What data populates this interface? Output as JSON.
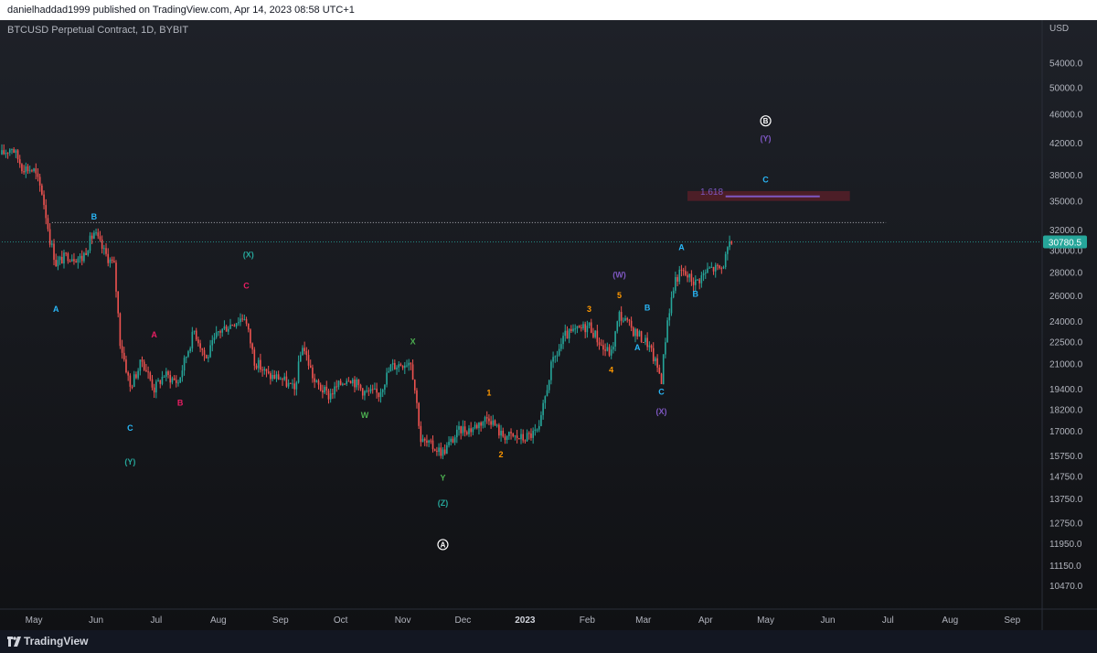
{
  "header": {
    "published": "danielhaddad1999 published on TradingView.com, Apr 14, 2023 08:58 UTC+1"
  },
  "chart_info": {
    "symbol": "BTCUSD Perpetual Contract, 1D, BYBIT"
  },
  "footer": {
    "brand": "TradingView",
    "logo_icon": "tradingview-logo-icon"
  },
  "colors": {
    "up": "#26a69a",
    "down": "#ef5350",
    "bg_top": "#1e2128",
    "bg_bottom": "#101114",
    "axis_text": "#b2b5be",
    "grid": "#2a2e39",
    "price_badge": "#26a69a",
    "fib_box": "#5d1f2a",
    "fib_line": "#7e57c2"
  },
  "chart_data": {
    "type": "candlestick",
    "title": "BTCUSD Perpetual Contract, 1D, BYBIT",
    "yaxis": {
      "unit": "USD",
      "scale": "log",
      "range": [
        10000,
        60000
      ],
      "ticks": [
        "54000.0",
        "50000.0",
        "46000.0",
        "42000.0",
        "38000.0",
        "35000.0",
        "32000.0",
        "30000.0",
        "28000.0",
        "26000.0",
        "24000.0",
        "22500.0",
        "21000.0",
        "19400.0",
        "18200.0",
        "17000.0",
        "15750.0",
        "14750.0",
        "13750.0",
        "12750.0",
        "11950.0",
        "11150.0",
        "10470.0"
      ]
    },
    "xaxis": {
      "range": [
        "2022-04-15",
        "2023-09-15"
      ],
      "ticks": [
        {
          "label": "May",
          "date": "2022-05-01"
        },
        {
          "label": "Jun",
          "date": "2022-06-01"
        },
        {
          "label": "Jul",
          "date": "2022-07-01"
        },
        {
          "label": "Aug",
          "date": "2022-08-01"
        },
        {
          "label": "Sep",
          "date": "2022-09-01"
        },
        {
          "label": "Oct",
          "date": "2022-10-01"
        },
        {
          "label": "Nov",
          "date": "2022-11-01"
        },
        {
          "label": "Dec",
          "date": "2022-12-01"
        },
        {
          "label": "2023",
          "date": "2023-01-01",
          "bold": true
        },
        {
          "label": "Feb",
          "date": "2023-02-01"
        },
        {
          "label": "Mar",
          "date": "2023-03-01"
        },
        {
          "label": "Apr",
          "date": "2023-04-01"
        },
        {
          "label": "May",
          "date": "2023-05-01"
        },
        {
          "label": "Jun",
          "date": "2023-06-01"
        },
        {
          "label": "Jul",
          "date": "2023-07-01"
        },
        {
          "label": "Aug",
          "date": "2023-08-01"
        },
        {
          "label": "Sep",
          "date": "2023-09-01"
        }
      ]
    },
    "last_price": {
      "label": "30780.5",
      "value": 30780.5
    },
    "price_path": [
      [
        "2022-04-15",
        40500
      ],
      [
        "2022-04-20",
        41500
      ],
      [
        "2022-04-25",
        39000
      ],
      [
        "2022-05-01",
        38500
      ],
      [
        "2022-05-05",
        36000
      ],
      [
        "2022-05-09",
        31000
      ],
      [
        "2022-05-12",
        28800
      ],
      [
        "2022-05-18",
        29500
      ],
      [
        "2022-05-25",
        29200
      ],
      [
        "2022-05-31",
        31700
      ],
      [
        "2022-06-05",
        29800
      ],
      [
        "2022-06-10",
        28500
      ],
      [
        "2022-06-13",
        22500
      ],
      [
        "2022-06-18",
        19500
      ],
      [
        "2022-06-24",
        21200
      ],
      [
        "2022-06-30",
        19400
      ],
      [
        "2022-07-05",
        20300
      ],
      [
        "2022-07-12",
        19800
      ],
      [
        "2022-07-20",
        23300
      ],
      [
        "2022-07-26",
        21300
      ],
      [
        "2022-08-01",
        23200
      ],
      [
        "2022-08-14",
        24400
      ],
      [
        "2022-08-19",
        21200
      ],
      [
        "2022-08-26",
        20200
      ],
      [
        "2022-09-01",
        20100
      ],
      [
        "2022-09-08",
        19300
      ],
      [
        "2022-09-12",
        22300
      ],
      [
        "2022-09-18",
        19800
      ],
      [
        "2022-09-25",
        19000
      ],
      [
        "2022-10-05",
        20200
      ],
      [
        "2022-10-13",
        19200
      ],
      [
        "2022-10-20",
        19100
      ],
      [
        "2022-10-26",
        20800
      ],
      [
        "2022-11-05",
        21200
      ],
      [
        "2022-11-08",
        18500
      ],
      [
        "2022-11-10",
        16500
      ],
      [
        "2022-11-21",
        15900
      ],
      [
        "2022-11-30",
        17100
      ],
      [
        "2022-12-05",
        17100
      ],
      [
        "2022-12-14",
        17800
      ],
      [
        "2022-12-20",
        16800
      ],
      [
        "2022-12-31",
        16600
      ],
      [
        "2023-01-08",
        17000
      ],
      [
        "2023-01-14",
        20800
      ],
      [
        "2023-01-21",
        22900
      ],
      [
        "2023-02-02",
        23700
      ],
      [
        "2023-02-09",
        22000
      ],
      [
        "2023-02-13",
        21700
      ],
      [
        "2023-02-17",
        24500
      ],
      [
        "2023-02-24",
        23300
      ],
      [
        "2023-03-03",
        22400
      ],
      [
        "2023-03-09",
        20400
      ],
      [
        "2023-03-10",
        20000
      ],
      [
        "2023-03-13",
        24100
      ],
      [
        "2023-03-17",
        27400
      ],
      [
        "2023-03-20",
        28000
      ],
      [
        "2023-03-27",
        27100
      ],
      [
        "2023-04-03",
        28300
      ],
      [
        "2023-04-09",
        28300
      ],
      [
        "2023-04-14",
        30800
      ]
    ],
    "annotations": [
      {
        "text": "B",
        "date": "2022-05-31",
        "price": 33000,
        "color": "#29b6f6"
      },
      {
        "text": "A",
        "date": "2022-05-12",
        "price": 24700,
        "color": "#29b6f6"
      },
      {
        "text": "A",
        "date": "2022-06-30",
        "price": 22800,
        "color": "#e91e63"
      },
      {
        "text": "B",
        "date": "2022-07-13",
        "price": 18400,
        "color": "#e91e63"
      },
      {
        "text": "C",
        "date": "2022-08-15",
        "price": 26600,
        "color": "#e91e63"
      },
      {
        "text": "C",
        "date": "2022-06-18",
        "price": 17000,
        "color": "#29b6f6"
      },
      {
        "text": "(Y)",
        "date": "2022-06-18",
        "price": 15300,
        "color": "#26a69a"
      },
      {
        "text": "(X)",
        "date": "2022-08-16",
        "price": 29300,
        "color": "#26a69a"
      },
      {
        "text": "W",
        "date": "2022-10-13",
        "price": 17700,
        "color": "#4caf50"
      },
      {
        "text": "X",
        "date": "2022-11-06",
        "price": 22300,
        "color": "#4caf50"
      },
      {
        "text": "Y",
        "date": "2022-11-21",
        "price": 14550,
        "color": "#4caf50"
      },
      {
        "text": "(Z)",
        "date": "2022-11-21",
        "price": 13450,
        "color": "#26a69a"
      },
      {
        "text": "1",
        "date": "2022-12-14",
        "price": 19000,
        "color": "#ff9800"
      },
      {
        "text": "2",
        "date": "2022-12-20",
        "price": 15650,
        "color": "#ff9800"
      },
      {
        "text": "3",
        "date": "2023-02-02",
        "price": 24700,
        "color": "#ff9800"
      },
      {
        "text": "4",
        "date": "2023-02-13",
        "price": 20400,
        "color": "#ff9800"
      },
      {
        "text": "5",
        "date": "2023-02-17",
        "price": 25800,
        "color": "#ff9800"
      },
      {
        "text": "(W)",
        "date": "2023-02-17",
        "price": 27500,
        "color": "#7e57c2"
      },
      {
        "text": "A",
        "date": "2023-02-26",
        "price": 21900,
        "color": "#29b6f6"
      },
      {
        "text": "B",
        "date": "2023-03-03",
        "price": 24800,
        "color": "#29b6f6"
      },
      {
        "text": "C",
        "date": "2023-03-10",
        "price": 19050,
        "color": "#29b6f6"
      },
      {
        "text": "(X)",
        "date": "2023-03-10",
        "price": 17900,
        "color": "#7e57c2"
      },
      {
        "text": "A",
        "date": "2023-03-20",
        "price": 30000,
        "color": "#29b6f6"
      },
      {
        "text": "B",
        "date": "2023-03-27",
        "price": 25900,
        "color": "#29b6f6"
      },
      {
        "text": "C",
        "date": "2023-05-01",
        "price": 37100,
        "color": "#29b6f6"
      },
      {
        "text": "(Y)",
        "date": "2023-05-01",
        "price": 42200,
        "color": "#7e57c2"
      }
    ],
    "circled_labels": [
      {
        "text": "A",
        "date": "2022-11-21",
        "price": 11900
      },
      {
        "text": "B",
        "date": "2023-05-01",
        "price": 45000
      }
    ],
    "levels": [
      {
        "name": "resistance-line",
        "price": 32700,
        "from": "2022-05-10",
        "to": "2023-06-30",
        "style": "dotted",
        "color": "#d1d4dc"
      },
      {
        "name": "last-price-line",
        "price": 30780.5,
        "from": "2022-04-15",
        "to": "2023-09-15",
        "style": "dotted",
        "color": "#26a69a"
      }
    ],
    "fib_zone": {
      "label": "1.618",
      "from": "2023-03-23",
      "to": "2023-06-12",
      "price_low": 35000,
      "price_high": 36100,
      "line_price": 35500,
      "line_from": "2023-04-11",
      "line_to": "2023-05-28"
    }
  }
}
